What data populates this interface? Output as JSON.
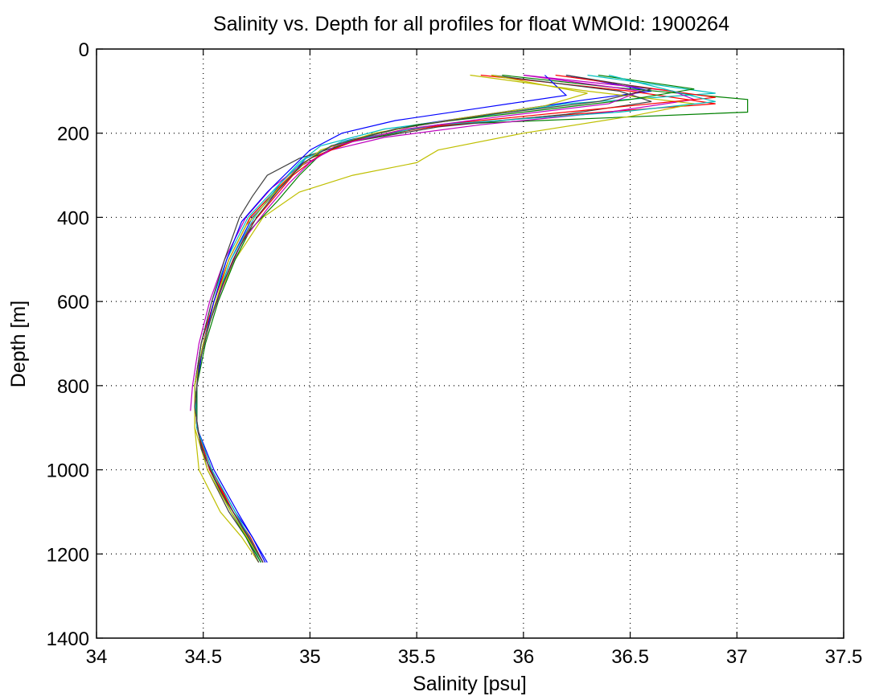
{
  "chart_data": {
    "type": "line",
    "title": "Salinity vs. Depth for all profiles for float WMOId: 1900264",
    "xlabel": "Salinity [psu]",
    "ylabel": "Depth [m]",
    "xlim": [
      34,
      37.5
    ],
    "ylim": [
      0,
      1400
    ],
    "y_reversed": true,
    "grid": true,
    "xticks": [
      34,
      34.5,
      35,
      35.5,
      36,
      36.5,
      37,
      37.5
    ],
    "yticks": [
      0,
      200,
      400,
      600,
      800,
      1000,
      1200,
      1400
    ],
    "xtick_labels": [
      "34",
      "34.5",
      "35",
      "35.5",
      "36",
      "36.5",
      "37",
      "37.5"
    ],
    "ytick_labels": [
      "0",
      "200",
      "400",
      "600",
      "800",
      "1000",
      "1200",
      "1400"
    ],
    "series": [
      {
        "color": "#0000ff",
        "depth": [
          62,
          100,
          120,
          150,
          180,
          220,
          260,
          320,
          400,
          500,
          600,
          700,
          800,
          900,
          1000,
          1100,
          1160,
          1220
        ],
        "salinity": [
          36.2,
          36.6,
          36.3,
          35.9,
          35.5,
          35.15,
          34.98,
          34.88,
          34.73,
          34.63,
          34.56,
          34.5,
          34.47,
          34.47,
          34.54,
          34.65,
          34.73,
          34.79
        ]
      },
      {
        "color": "#008000",
        "depth": [
          62,
          90,
          120,
          150,
          180,
          220,
          260,
          320,
          400,
          500,
          600,
          700,
          800,
          900,
          1000,
          1100,
          1160,
          1220
        ],
        "salinity": [
          35.9,
          36.4,
          37.05,
          37.05,
          35.6,
          35.2,
          35.0,
          34.87,
          34.72,
          34.62,
          34.55,
          34.5,
          34.46,
          34.47,
          34.53,
          34.64,
          34.72,
          34.78
        ]
      },
      {
        "color": "#ff0000",
        "depth": [
          62,
          100,
          130,
          160,
          190,
          230,
          270,
          330,
          400,
          500,
          600,
          700,
          800,
          900,
          1000,
          1100,
          1160,
          1220
        ],
        "salinity": [
          35.8,
          36.5,
          36.9,
          36.1,
          35.45,
          35.1,
          34.97,
          34.85,
          34.72,
          34.62,
          34.55,
          34.49,
          34.46,
          34.47,
          34.54,
          34.64,
          34.72,
          34.78
        ]
      },
      {
        "color": "#00bfbf",
        "depth": [
          62,
          105,
          130,
          160,
          190,
          230,
          270,
          330,
          400,
          500,
          600,
          700,
          800,
          900,
          1000,
          1100,
          1160,
          1220
        ],
        "salinity": [
          36.3,
          36.9,
          36.2,
          35.8,
          35.35,
          35.05,
          34.95,
          34.84,
          34.71,
          34.61,
          34.54,
          34.49,
          34.46,
          34.47,
          34.53,
          34.63,
          34.71,
          34.77
        ]
      },
      {
        "color": "#bf00bf",
        "depth": [
          62,
          100,
          120,
          150,
          180,
          210,
          240,
          280,
          330,
          400,
          500,
          600,
          700,
          800,
          860
        ],
        "salinity": [
          36.0,
          36.7,
          36.8,
          36.4,
          35.8,
          35.35,
          35.1,
          34.95,
          34.82,
          34.7,
          34.6,
          34.53,
          34.48,
          34.45,
          34.44
        ]
      },
      {
        "color": "#bfbf00",
        "depth": [
          62,
          100,
          130,
          160,
          200,
          240,
          270,
          300,
          340,
          400,
          500,
          600,
          700,
          800,
          900,
          1000,
          1100,
          1160,
          1220
        ],
        "salinity": [
          35.75,
          36.3,
          36.8,
          36.5,
          36.0,
          35.6,
          35.5,
          35.2,
          34.95,
          34.78,
          34.65,
          34.56,
          34.5,
          34.46,
          34.46,
          34.48,
          34.58,
          34.68,
          34.76
        ]
      },
      {
        "color": "#404040",
        "depth": [
          62,
          100,
          125,
          155,
          185,
          220,
          260,
          300,
          350,
          400,
          500,
          600,
          700,
          800,
          900,
          1000,
          1100,
          1160,
          1220
        ],
        "salinity": [
          35.85,
          36.45,
          36.6,
          36.2,
          35.6,
          35.2,
          34.95,
          34.8,
          34.73,
          34.67,
          34.6,
          34.54,
          34.49,
          34.46,
          34.47,
          34.52,
          34.62,
          34.7,
          34.76
        ]
      },
      {
        "color": "#0000ff",
        "depth": [
          62,
          110,
          140,
          170,
          200,
          240,
          280,
          340,
          410,
          500,
          600,
          700,
          800,
          900,
          1000,
          1100,
          1220
        ],
        "salinity": [
          36.1,
          36.2,
          35.8,
          35.4,
          35.15,
          35.0,
          34.92,
          34.8,
          34.68,
          34.61,
          34.55,
          34.5,
          34.47,
          34.47,
          34.55,
          34.66,
          34.8
        ]
      },
      {
        "color": "#008000",
        "depth": [
          62,
          95,
          120,
          150,
          180,
          215,
          250,
          300,
          360,
          430,
          500,
          600,
          700,
          800,
          900,
          1000,
          1100,
          1220
        ],
        "salinity": [
          36.35,
          36.8,
          36.5,
          36.0,
          35.5,
          35.2,
          35.05,
          34.95,
          34.85,
          34.72,
          34.65,
          34.57,
          34.51,
          34.47,
          34.47,
          34.53,
          34.63,
          34.77
        ]
      },
      {
        "color": "#ff0000",
        "depth": [
          62,
          90,
          115,
          145,
          175,
          210,
          250,
          300,
          360,
          420,
          500,
          600,
          700,
          800,
          900,
          1000,
          1100,
          1220
        ],
        "salinity": [
          36.15,
          36.55,
          36.9,
          36.3,
          35.7,
          35.25,
          35.05,
          34.92,
          34.82,
          34.72,
          34.64,
          34.56,
          34.5,
          34.46,
          34.47,
          34.53,
          34.64,
          34.78
        ]
      },
      {
        "color": "#00bfbf",
        "depth": [
          62,
          100,
          125,
          150,
          180,
          220,
          260,
          320,
          400,
          500,
          600,
          700,
          800,
          900,
          1000,
          1100,
          1220
        ],
        "salinity": [
          36.4,
          36.7,
          36.9,
          36.45,
          35.6,
          35.15,
          34.98,
          34.86,
          34.74,
          34.63,
          34.56,
          34.5,
          34.46,
          34.47,
          34.54,
          34.65,
          34.78
        ]
      },
      {
        "color": "#bf00bf",
        "depth": [
          62,
          100,
          130,
          160,
          190,
          230,
          270,
          320,
          380,
          460,
          550,
          650,
          750,
          850,
          950,
          1050,
          1150,
          1220
        ],
        "salinity": [
          36.0,
          36.55,
          36.4,
          35.9,
          35.45,
          35.12,
          35.0,
          34.9,
          34.8,
          34.68,
          34.6,
          34.53,
          34.48,
          34.46,
          34.49,
          34.58,
          34.7,
          34.78
        ]
      },
      {
        "color": "#bfbf00",
        "depth": [
          62,
          105,
          135,
          165,
          200,
          240,
          290,
          350,
          420,
          500,
          600,
          700,
          800,
          900,
          1000,
          1100,
          1220
        ],
        "salinity": [
          35.85,
          36.3,
          36.1,
          35.7,
          35.3,
          35.05,
          34.93,
          34.82,
          34.7,
          34.62,
          34.56,
          34.5,
          34.46,
          34.46,
          34.52,
          34.63,
          34.78
        ]
      },
      {
        "color": "#404040",
        "depth": [
          62,
          95,
          125,
          155,
          190,
          230,
          270,
          330,
          400,
          480,
          560,
          650,
          750,
          850,
          950,
          1050,
          1150,
          1220
        ],
        "salinity": [
          36.2,
          36.6,
          36.35,
          35.85,
          35.4,
          35.1,
          34.97,
          34.86,
          34.75,
          34.66,
          34.59,
          34.53,
          34.48,
          34.46,
          34.49,
          34.58,
          34.7,
          34.78
        ]
      }
    ]
  }
}
